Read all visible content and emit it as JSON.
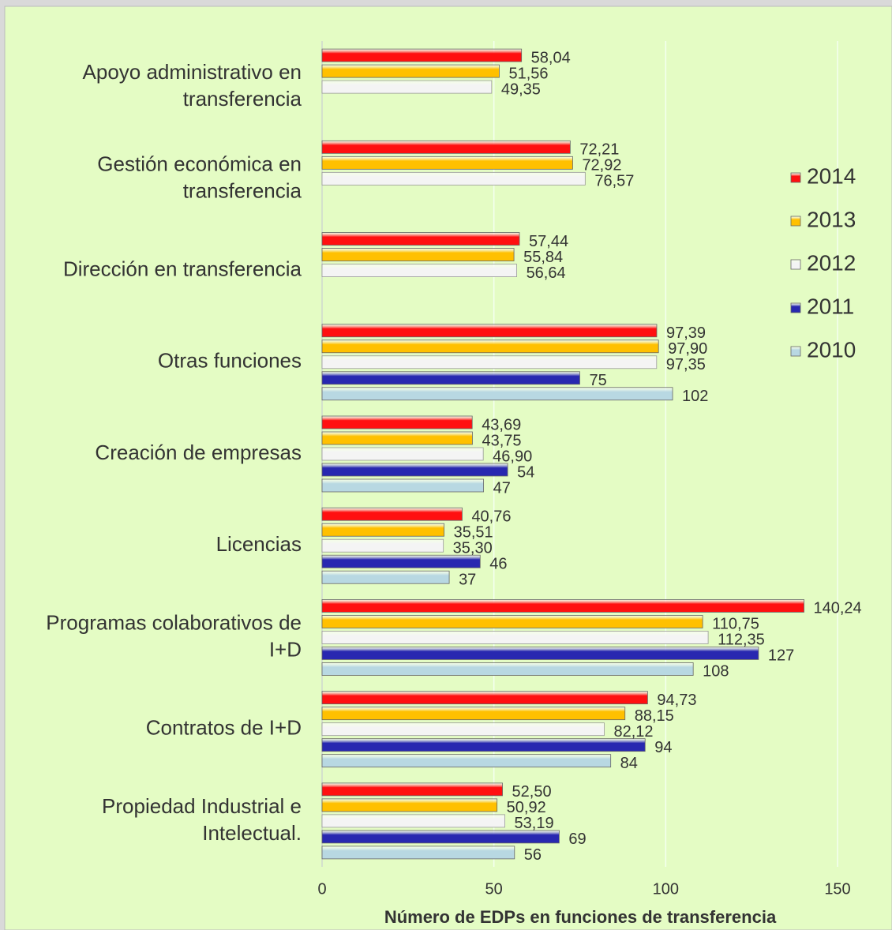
{
  "chart_data": {
    "type": "hbar",
    "x_label": "Número de EDPs en funciones de transferencia",
    "categories": [
      "Apoyo administrativo en\ntransferencia",
      "Gestión económica en\ntransferencia",
      "Dirección en transferencia",
      "Otras funciones",
      "Creación de empresas",
      "Licencias",
      "Programas colaborativos de\nI+D",
      "Contratos de I+D",
      "Propiedad Industrial e\nIntelectual."
    ],
    "series": [
      {
        "name": "2014",
        "color": "#ff1010",
        "values": [
          58.04,
          72.21,
          57.44,
          97.39,
          43.69,
          40.76,
          140.24,
          94.73,
          52.5
        ],
        "value_labels": [
          "58,04",
          "72,21",
          "57,44",
          "97,39",
          "43,69",
          "40,76",
          "140,24",
          "94,73",
          "52,50"
        ]
      },
      {
        "name": "2013",
        "color": "#ffc000",
        "values": [
          51.56,
          72.92,
          55.84,
          97.9,
          43.75,
          35.51,
          110.75,
          88.15,
          50.92
        ],
        "value_labels": [
          "51,56",
          "72,92",
          "55,84",
          "97,90",
          "43,75",
          "35,51",
          "110,75",
          "88,15",
          "50,92"
        ]
      },
      {
        "name": "2012",
        "color": "#f4f4f4",
        "values": [
          49.35,
          76.57,
          56.64,
          97.35,
          46.9,
          35.3,
          112.35,
          82.12,
          53.19
        ],
        "value_labels": [
          "49,35",
          "76,57",
          "56,64",
          "97,35",
          "46,90",
          "35,30",
          "112,35",
          "82,12",
          "53,19"
        ]
      },
      {
        "name": "2011",
        "color": "#2828b0",
        "values": [
          null,
          null,
          null,
          75,
          54,
          46,
          127,
          94,
          69
        ]
      },
      {
        "name": "2010",
        "color": "#b8d8e2",
        "values": [
          null,
          null,
          null,
          102,
          47,
          37,
          108,
          84,
          56
        ]
      }
    ],
    "xlim": [
      0,
      150
    ],
    "xticks": [
      0,
      50,
      100,
      150
    ],
    "grid": true,
    "legend": "right"
  }
}
